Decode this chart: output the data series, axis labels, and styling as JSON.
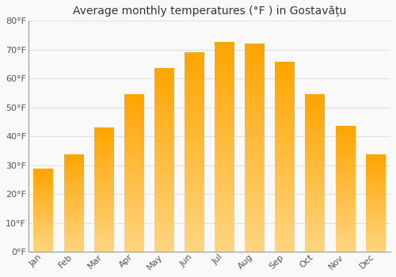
{
  "title": "Average monthly temperatures (°F ) in Gostavățu",
  "months": [
    "Jan",
    "Feb",
    "Mar",
    "Apr",
    "May",
    "Jun",
    "Jul",
    "Aug",
    "Sep",
    "Oct",
    "Nov",
    "Dec"
  ],
  "values": [
    28.5,
    33.5,
    43,
    54.5,
    63.5,
    69,
    72.5,
    72,
    65.5,
    54.5,
    43.5,
    33.5
  ],
  "ylim": [
    0,
    80
  ],
  "yticks": [
    0,
    10,
    20,
    30,
    40,
    50,
    60,
    70,
    80
  ],
  "ytick_labels": [
    "0°F",
    "10°F",
    "20°F",
    "30°F",
    "40°F",
    "50°F",
    "60°F",
    "70°F",
    "80°F"
  ],
  "background_color": "#f9f9f9",
  "grid_color": "#e0e0e0",
  "bar_color_light": "#FFD580",
  "bar_color_dark": "#FFA500",
  "title_fontsize": 10,
  "tick_fontsize": 8,
  "bar_width": 0.65
}
